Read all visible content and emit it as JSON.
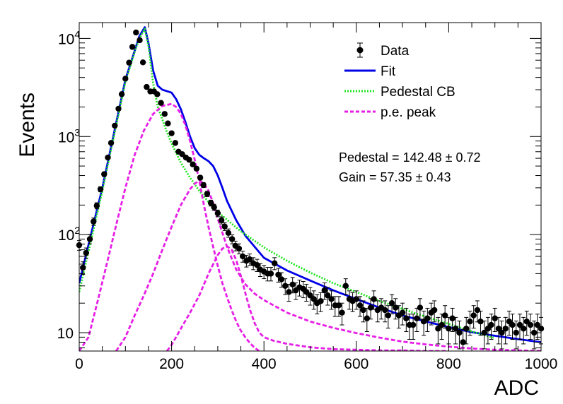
{
  "chart_data": {
    "type": "scatter",
    "title": "",
    "xlabel": "ADC",
    "ylabel": "Events",
    "xlim": [
      0,
      1000
    ],
    "ylim": [
      6.5,
      14500
    ],
    "y_scale": "log",
    "x_ticks": [
      {
        "value": 0,
        "label": "0"
      },
      {
        "value": 200,
        "label": "200"
      },
      {
        "value": 400,
        "label": "400"
      },
      {
        "value": 600,
        "label": "600"
      },
      {
        "value": 800,
        "label": "800"
      },
      {
        "value": 1000,
        "label": "1000"
      }
    ],
    "y_ticks": [
      {
        "value": 10,
        "base": "10",
        "exp": ""
      },
      {
        "value": 100,
        "base": "10",
        "exp": "2"
      },
      {
        "value": 1000,
        "base": "10",
        "exp": "3"
      },
      {
        "value": 10000,
        "base": "10",
        "exp": "4"
      }
    ],
    "legend": {
      "placement": "top-right",
      "entries": [
        {
          "label": "Data",
          "style": "marker",
          "color": "#000000"
        },
        {
          "label": "Fit",
          "style": "solid",
          "color": "#0000e6"
        },
        {
          "label": "Pedestal CB",
          "style": "dotted",
          "color": "#1fe61f"
        },
        {
          "label": "p.e. peak",
          "style": "dashed",
          "color": "#e61fe6"
        }
      ]
    },
    "annotations": [
      {
        "name": "pedestal",
        "prefix": "Pedestal = 142.48",
        "pm": "±",
        "err": "0.72"
      },
      {
        "name": "gain",
        "prefix": "Gain = 57.35",
        "pm": "±",
        "err": "0.43"
      }
    ],
    "series": [
      {
        "name": "Data",
        "kind": "points",
        "color": "#000000",
        "x": [
          0,
          8,
          15,
          23,
          31,
          38,
          46,
          54,
          62,
          69,
          77,
          85,
          92,
          100,
          108,
          115,
          123,
          131,
          138,
          146,
          154,
          162,
          169,
          177,
          185,
          192,
          200,
          208,
          215,
          223,
          231,
          238,
          246,
          254,
          262,
          269,
          277,
          285,
          292,
          300,
          308,
          315,
          323,
          331,
          338,
          346,
          354,
          362,
          369,
          377,
          385,
          392,
          400,
          408,
          415,
          423,
          431,
          438,
          446,
          454,
          462,
          469,
          477,
          485,
          492,
          500,
          508,
          515,
          523,
          531,
          538,
          546,
          554,
          562,
          569,
          577,
          585,
          592,
          600,
          608,
          615,
          623,
          631,
          638,
          646,
          654,
          662,
          669,
          677,
          685,
          692,
          700,
          708,
          715,
          723,
          731,
          738,
          746,
          754,
          762,
          769,
          777,
          785,
          792,
          800,
          808,
          815,
          823,
          831,
          838,
          846,
          854,
          862,
          869,
          877,
          885,
          892,
          900,
          908,
          915,
          923,
          931,
          938,
          946,
          954,
          962,
          969,
          977,
          985,
          992,
          1000
        ],
        "y": [
          78,
          46,
          65,
          90,
          136,
          197,
          290,
          413,
          610,
          860,
          1290,
          1920,
          2700,
          3890,
          5660,
          8200,
          11500,
          9600,
          5700,
          3200,
          2880,
          2880,
          2700,
          2200,
          1700,
          1360,
          1080,
          860,
          700,
          660,
          610,
          580,
          520,
          470,
          380,
          320,
          260,
          210,
          190,
          165,
          140,
          121,
          104,
          90,
          77,
          72,
          60,
          54,
          56,
          51,
          49,
          44,
          42,
          40,
          40,
          51,
          39,
          35,
          30,
          26,
          31,
          27,
          29,
          28,
          26,
          24,
          22,
          20,
          21,
          27,
          24,
          22,
          19,
          19,
          16,
          30,
          22,
          21,
          22,
          19,
          17,
          14,
          18,
          22,
          17,
          18,
          17,
          15,
          20,
          18,
          15,
          16,
          14,
          12,
          12,
          14,
          18,
          13,
          14,
          16,
          17,
          11,
          12,
          15,
          11,
          14,
          11,
          10,
          8,
          11,
          13,
          15,
          17,
          13,
          10,
          11,
          12,
          14,
          11,
          10,
          11,
          13,
          12,
          10,
          12,
          11,
          13,
          12,
          10,
          12,
          11
        ]
      },
      {
        "name": "Fit",
        "kind": "line",
        "color": "#0000e6",
        "dash": "none",
        "width": 2.8,
        "x": [
          0,
          50,
          100,
          120,
          130,
          142,
          150,
          160,
          170,
          180,
          190,
          200,
          210,
          220,
          230,
          240,
          250,
          260,
          270,
          280,
          290,
          300,
          310,
          320,
          340,
          360,
          380,
          400,
          450,
          500,
          550,
          600,
          650,
          700,
          750,
          800,
          850,
          900,
          950,
          1000
        ],
        "y": [
          32,
          300,
          3800,
          7500,
          10500,
          13000,
          9000,
          4700,
          3300,
          3000,
          2900,
          2800,
          2400,
          1900,
          1400,
          1000,
          760,
          650,
          600,
          560,
          500,
          400,
          300,
          220,
          140,
          97,
          75,
          58,
          43,
          34,
          27,
          22,
          18,
          15,
          13,
          11.4,
          10.1,
          9.3,
          8.6,
          8.0
        ]
      },
      {
        "name": "Pedestal CB",
        "kind": "line",
        "color": "#1fe61f",
        "dash": "2 2",
        "width": 2.8,
        "x": [
          0,
          50,
          100,
          120,
          130,
          142,
          150,
          160,
          170,
          180,
          190,
          200,
          220,
          240,
          260,
          280,
          300,
          350,
          400,
          450,
          500,
          550,
          600,
          650,
          700,
          750,
          800,
          850,
          900
        ],
        "y": [
          26,
          280,
          3600,
          7300,
          10000,
          12500,
          8400,
          3500,
          2000,
          1500,
          1100,
          850,
          540,
          380,
          280,
          215,
          170,
          108,
          74,
          54,
          41,
          32,
          26,
          21,
          17.5,
          14.5,
          12.3,
          10.3,
          8.8
        ]
      },
      {
        "name": "p.e. peak 1",
        "kind": "line",
        "color": "#e61fe6",
        "dash": "6 3",
        "width": 2.8,
        "x": [
          0,
          20,
          40,
          60,
          80,
          100,
          120,
          140,
          160,
          180,
          200,
          210,
          220,
          230,
          240,
          250,
          260,
          270,
          280,
          290,
          300,
          310,
          320,
          330,
          340,
          350,
          360,
          370,
          380,
          390
        ],
        "y": [
          6.5,
          9,
          21,
          51,
          125,
          300,
          650,
          1150,
          1700,
          2050,
          2150,
          2000,
          1700,
          1300,
          900,
          580,
          350,
          200,
          120,
          75,
          48,
          32,
          23,
          17,
          13,
          10.5,
          8.9,
          7.8,
          7.0,
          6.5
        ]
      },
      {
        "name": "p.e. peak 2",
        "kind": "line",
        "color": "#e61fe6",
        "dash": "6 3",
        "width": 2.8,
        "x": [
          80,
          100,
          120,
          140,
          160,
          180,
          200,
          220,
          240,
          250,
          260,
          270,
          280,
          290,
          300,
          320,
          340,
          360,
          380,
          400,
          450,
          500,
          550,
          600,
          650,
          700,
          750,
          800,
          850,
          900,
          950,
          1000
        ],
        "y": [
          6.5,
          9,
          15,
          24,
          40,
          70,
          120,
          200,
          290,
          330,
          355,
          330,
          280,
          210,
          145,
          75,
          44,
          31,
          25,
          21.5,
          16,
          13,
          11.2,
          9.9,
          8.9,
          8.1,
          7.6,
          7.2,
          6.9,
          6.7,
          6.6,
          6.5
        ]
      },
      {
        "name": "p.e. peak 3",
        "kind": "line",
        "color": "#e61fe6",
        "dash": "6 3",
        "width": 2.8,
        "x": [
          190,
          200,
          220,
          240,
          260,
          280,
          300,
          310,
          320,
          330,
          340,
          350,
          360,
          370,
          380,
          390,
          400,
          420,
          450,
          500,
          550,
          600,
          650,
          700,
          750,
          800
        ],
        "y": [
          6.5,
          7.5,
          11,
          16,
          24,
          40,
          62,
          72,
          76,
          70,
          55,
          38,
          25,
          17,
          12.5,
          10,
          9,
          8.3,
          7.7,
          7.1,
          6.8,
          6.7,
          6.6,
          6.6,
          6.5,
          6.5
        ]
      }
    ]
  }
}
